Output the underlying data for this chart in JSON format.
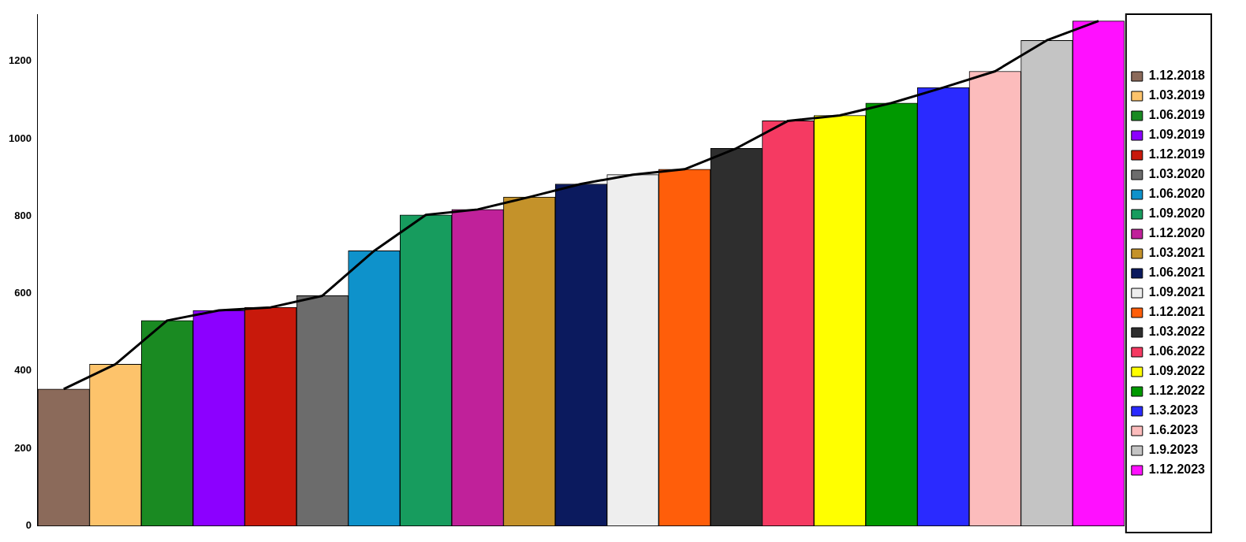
{
  "chart_data": {
    "type": "bar",
    "categories": [
      null,
      null,
      null,
      null,
      null,
      null,
      null,
      null,
      null,
      null,
      null,
      null,
      null,
      null,
      null,
      null,
      null,
      null,
      null,
      null,
      null
    ],
    "series": [
      {
        "name": "1.12.2018",
        "color": "#8b6a5a",
        "values": [
          353,
          null,
          null,
          null,
          null,
          null,
          null,
          null,
          null,
          null,
          null,
          null,
          null,
          null,
          null,
          null,
          null,
          null,
          null,
          null,
          null
        ]
      },
      {
        "name": "1.03.2019",
        "color": "#fdc36b",
        "values": [
          null,
          417,
          null,
          null,
          null,
          null,
          null,
          null,
          null,
          null,
          null,
          null,
          null,
          null,
          null,
          null,
          null,
          null,
          null,
          null,
          null
        ]
      },
      {
        "name": "1.06.2019",
        "color": "#1a8a22",
        "values": [
          null,
          null,
          530,
          null,
          null,
          null,
          null,
          null,
          null,
          null,
          null,
          null,
          null,
          null,
          null,
          null,
          null,
          null,
          null,
          null,
          null
        ]
      },
      {
        "name": "1.09.2019",
        "color": "#8c00ff",
        "values": [
          null,
          null,
          null,
          556,
          null,
          null,
          null,
          null,
          null,
          null,
          null,
          null,
          null,
          null,
          null,
          null,
          null,
          null,
          null,
          null,
          null
        ]
      },
      {
        "name": "1.12.2019",
        "color": "#c8190b",
        "values": [
          null,
          null,
          null,
          null,
          564,
          null,
          null,
          null,
          null,
          null,
          null,
          null,
          null,
          null,
          null,
          null,
          null,
          null,
          null,
          null,
          null
        ]
      },
      {
        "name": "1.03.2020",
        "color": "#6c6c6c",
        "values": [
          null,
          null,
          null,
          null,
          null,
          594,
          null,
          null,
          null,
          null,
          null,
          null,
          null,
          null,
          null,
          null,
          null,
          null,
          null,
          null,
          null
        ]
      },
      {
        "name": "1.06.2020",
        "color": "#0e92cb",
        "values": [
          null,
          null,
          null,
          null,
          null,
          null,
          710,
          null,
          null,
          null,
          null,
          null,
          null,
          null,
          null,
          null,
          null,
          null,
          null,
          null,
          null
        ]
      },
      {
        "name": "1.09.2020",
        "color": "#179c5e",
        "values": [
          null,
          null,
          null,
          null,
          null,
          null,
          null,
          803,
          null,
          null,
          null,
          null,
          null,
          null,
          null,
          null,
          null,
          null,
          null,
          null,
          null
        ]
      },
      {
        "name": "1.12.2020",
        "color": "#c0219a",
        "values": [
          null,
          null,
          null,
          null,
          null,
          null,
          null,
          null,
          817,
          null,
          null,
          null,
          null,
          null,
          null,
          null,
          null,
          null,
          null,
          null,
          null
        ]
      },
      {
        "name": "1.03.2021",
        "color": "#c4922a",
        "values": [
          null,
          null,
          null,
          null,
          null,
          null,
          null,
          null,
          null,
          849,
          null,
          null,
          null,
          null,
          null,
          null,
          null,
          null,
          null,
          null,
          null
        ]
      },
      {
        "name": "1.06.2021",
        "color": "#0b1a5e",
        "values": [
          null,
          null,
          null,
          null,
          null,
          null,
          null,
          null,
          null,
          null,
          883,
          null,
          null,
          null,
          null,
          null,
          null,
          null,
          null,
          null,
          null
        ]
      },
      {
        "name": "1.09.2021",
        "color": "#eeeeee",
        "values": [
          null,
          null,
          null,
          null,
          null,
          null,
          null,
          null,
          null,
          null,
          null,
          907,
          null,
          null,
          null,
          null,
          null,
          null,
          null,
          null,
          null
        ]
      },
      {
        "name": "1.12.2021",
        "color": "#ff5e0a",
        "values": [
          null,
          null,
          null,
          null,
          null,
          null,
          null,
          null,
          null,
          null,
          null,
          null,
          921,
          null,
          null,
          null,
          null,
          null,
          null,
          null,
          null
        ]
      },
      {
        "name": "1.03.2022",
        "color": "#2e2e2e",
        "values": [
          null,
          null,
          null,
          null,
          null,
          null,
          null,
          null,
          null,
          null,
          null,
          null,
          null,
          975,
          null,
          null,
          null,
          null,
          null,
          null,
          null
        ]
      },
      {
        "name": "1.06.2022",
        "color": "#f53a62",
        "values": [
          null,
          null,
          null,
          null,
          null,
          null,
          null,
          null,
          null,
          null,
          null,
          null,
          null,
          null,
          1046,
          null,
          null,
          null,
          null,
          null,
          null
        ]
      },
      {
        "name": "1.09.2022",
        "color": "#ffff00",
        "values": [
          null,
          null,
          null,
          null,
          null,
          null,
          null,
          null,
          null,
          null,
          null,
          null,
          null,
          null,
          null,
          1060,
          null,
          null,
          null,
          null,
          null
        ]
      },
      {
        "name": "1.12.2022",
        "color": "#009900",
        "values": [
          null,
          null,
          null,
          null,
          null,
          null,
          null,
          null,
          null,
          null,
          null,
          null,
          null,
          null,
          null,
          null,
          1092,
          null,
          null,
          null,
          null
        ]
      },
      {
        "name": "1.3.2023",
        "color": "#2a2aff",
        "values": [
          null,
          null,
          null,
          null,
          null,
          null,
          null,
          null,
          null,
          null,
          null,
          null,
          null,
          null,
          null,
          null,
          null,
          1132,
          null,
          null,
          null
        ]
      },
      {
        "name": "1.6.2023",
        "color": "#fcbcbc",
        "values": [
          null,
          null,
          null,
          null,
          null,
          null,
          null,
          null,
          null,
          null,
          null,
          null,
          null,
          null,
          null,
          null,
          null,
          null,
          1174,
          null,
          null
        ]
      },
      {
        "name": "1.9.2023",
        "color": "#c4c4c4",
        "values": [
          null,
          null,
          null,
          null,
          null,
          null,
          null,
          null,
          null,
          null,
          null,
          null,
          null,
          null,
          null,
          null,
          null,
          null,
          null,
          1254,
          null
        ]
      },
      {
        "name": "1.12.2023",
        "color": "#ff10ff",
        "values": [
          null,
          null,
          null,
          null,
          null,
          null,
          null,
          null,
          null,
          null,
          null,
          null,
          null,
          null,
          null,
          null,
          null,
          null,
          null,
          null,
          1304
        ]
      },
      {
        "type": "line",
        "color": "#000000",
        "values": [
          353,
          417,
          530,
          556,
          564,
          594,
          710,
          803,
          817,
          849,
          883,
          907,
          921,
          975,
          1046,
          1060,
          1092,
          1132,
          1174,
          1254,
          1304
        ]
      }
    ],
    "ylim": [
      0,
      1320
    ],
    "yticks": [
      0,
      200,
      400,
      600,
      800,
      1000,
      1200
    ],
    "grid": false,
    "legend": "right",
    "tick_labels": "y",
    "marker": "none"
  }
}
